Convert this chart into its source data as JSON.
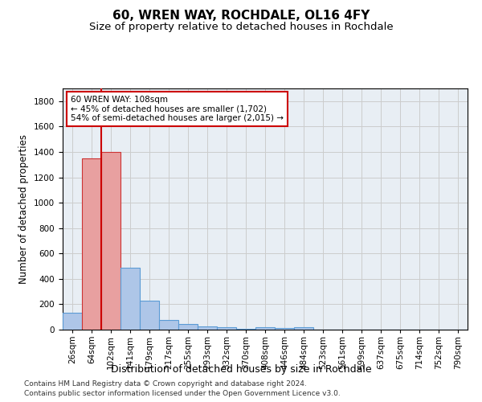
{
  "title": "60, WREN WAY, ROCHDALE, OL16 4FY",
  "subtitle": "Size of property relative to detached houses in Rochdale",
  "xlabel": "Distribution of detached houses by size in Rochdale",
  "ylabel": "Number of detached properties",
  "categories": [
    "26sqm",
    "64sqm",
    "102sqm",
    "141sqm",
    "179sqm",
    "217sqm",
    "255sqm",
    "293sqm",
    "332sqm",
    "370sqm",
    "408sqm",
    "446sqm",
    "484sqm",
    "523sqm",
    "561sqm",
    "599sqm",
    "637sqm",
    "675sqm",
    "714sqm",
    "752sqm",
    "790sqm"
  ],
  "values": [
    130,
    1350,
    1400,
    490,
    225,
    75,
    45,
    28,
    18,
    5,
    20,
    12,
    18,
    0,
    0,
    0,
    0,
    0,
    0,
    0,
    0
  ],
  "bar_colors": [
    "#aec6e8",
    "#e8a0a0",
    "#e8a0a0",
    "#aec6e8",
    "#aec6e8",
    "#aec6e8",
    "#aec6e8",
    "#aec6e8",
    "#aec6e8",
    "#aec6e8",
    "#aec6e8",
    "#aec6e8",
    "#aec6e8",
    "#aec6e8",
    "#aec6e8",
    "#aec6e8",
    "#aec6e8",
    "#aec6e8",
    "#aec6e8",
    "#aec6e8",
    "#aec6e8"
  ],
  "bar_edge_colors": [
    "#5b9bd5",
    "#cc3333",
    "#cc3333",
    "#5b9bd5",
    "#5b9bd5",
    "#5b9bd5",
    "#5b9bd5",
    "#5b9bd5",
    "#5b9bd5",
    "#5b9bd5",
    "#5b9bd5",
    "#5b9bd5",
    "#5b9bd5",
    "#5b9bd5",
    "#5b9bd5",
    "#5b9bd5",
    "#5b9bd5",
    "#5b9bd5",
    "#5b9bd5",
    "#5b9bd5",
    "#5b9bd5"
  ],
  "vline_x_idx": 2,
  "vline_color": "#cc0000",
  "annotation_text_line1": "60 WREN WAY: 108sqm",
  "annotation_text_line2": "← 45% of detached houses are smaller (1,702)",
  "annotation_text_line3": "54% of semi-detached houses are larger (2,015) →",
  "annotation_box_color": "#ffffff",
  "annotation_box_edge_color": "#cc0000",
  "ylim": [
    0,
    1900
  ],
  "yticks": [
    0,
    200,
    400,
    600,
    800,
    1000,
    1200,
    1400,
    1600,
    1800
  ],
  "grid_color": "#cccccc",
  "bg_color": "#e8eef4",
  "footer1": "Contains HM Land Registry data © Crown copyright and database right 2024.",
  "footer2": "Contains public sector information licensed under the Open Government Licence v3.0.",
  "title_fontsize": 11,
  "subtitle_fontsize": 9.5,
  "ylabel_fontsize": 8.5,
  "xlabel_fontsize": 9,
  "tick_fontsize": 7.5,
  "footer_fontsize": 6.5
}
